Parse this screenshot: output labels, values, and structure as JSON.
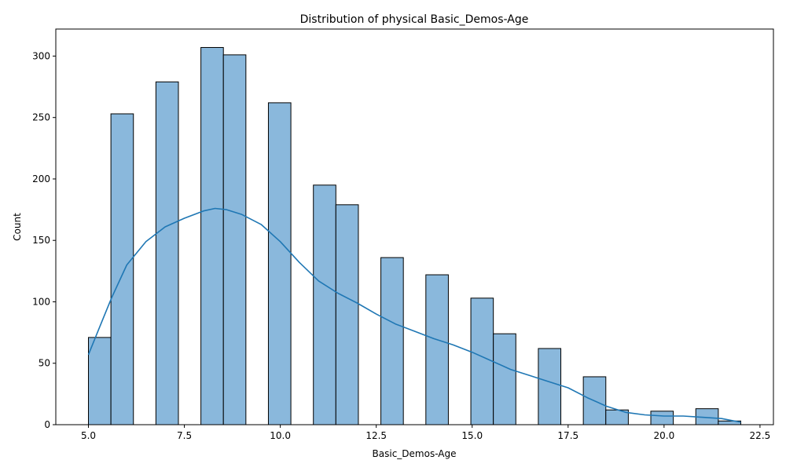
{
  "chart_data": {
    "type": "bar",
    "title": "Distribution of physical Basic_Demos-Age",
    "xlabel": "Basic_Demos-Age",
    "ylabel": "Count",
    "xlim": [
      4.15,
      22.85
    ],
    "ylim": [
      0,
      322
    ],
    "x_ticks": [
      "5.0",
      "7.5",
      "10.0",
      "12.5",
      "15.0",
      "17.5",
      "20.0",
      "22.5"
    ],
    "x_tick_values": [
      5.0,
      7.5,
      10.0,
      12.5,
      15.0,
      17.5,
      20.0,
      22.5
    ],
    "y_ticks": [
      "0",
      "50",
      "100",
      "150",
      "200",
      "250",
      "300"
    ],
    "y_tick_values": [
      0,
      50,
      100,
      150,
      200,
      250,
      300
    ],
    "bins": {
      "start": 5.0,
      "width": 0.5862,
      "counts": [
        71,
        253,
        0,
        279,
        0,
        307,
        301,
        0,
        262,
        0,
        195,
        179,
        0,
        136,
        0,
        122,
        0,
        103,
        74,
        0,
        62,
        0,
        39,
        12,
        0,
        11,
        0,
        13,
        3
      ]
    },
    "kde": {
      "name": "kde",
      "x": [
        5.0,
        5.3,
        5.6,
        6.0,
        6.5,
        7.0,
        7.5,
        8.0,
        8.3,
        8.6,
        9.0,
        9.5,
        10.0,
        10.5,
        11.0,
        11.5,
        12.0,
        12.5,
        13.0,
        13.5,
        14.0,
        14.5,
        15.0,
        15.5,
        16.0,
        16.5,
        17.0,
        17.5,
        18.0,
        18.5,
        19.0,
        19.5,
        20.0,
        20.5,
        21.0,
        21.5,
        22.0
      ],
      "y": [
        57,
        80,
        103,
        130,
        149,
        161,
        168,
        174,
        176,
        175,
        171,
        163,
        149,
        132,
        117,
        107,
        99,
        90,
        82,
        76,
        70,
        65,
        59,
        52,
        45,
        40,
        35,
        30,
        22,
        15,
        10,
        8,
        7,
        7,
        6,
        5,
        2
      ]
    },
    "bar_color": "#8ab8dc",
    "bar_edge_color": "#000000",
    "line_color": "#1f77b4",
    "grid": false,
    "legend": "none"
  }
}
